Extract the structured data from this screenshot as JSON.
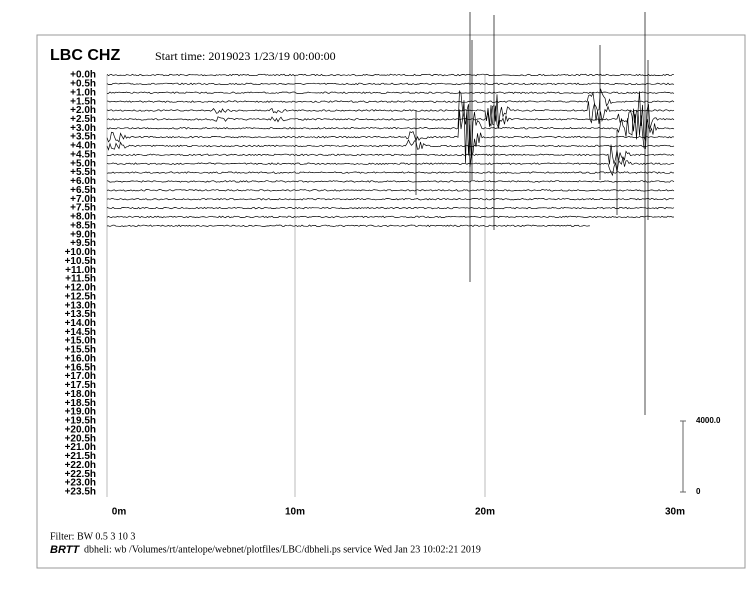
{
  "header": {
    "title": "LBC CHZ",
    "start_time": "Start time: 2019023  1/23/19 00:00:00"
  },
  "rows": [
    "+0.0h",
    "+0.5h",
    "+1.0h",
    "+1.5h",
    "+2.0h",
    "+2.5h",
    "+3.0h",
    "+3.5h",
    "+4.0h",
    "+4.5h",
    "+5.0h",
    "+5.5h",
    "+6.0h",
    "+6.5h",
    "+7.0h",
    "+7.5h",
    "+8.0h",
    "+8.5h",
    "+9.0h",
    "+9.5h",
    "+10.0h",
    "+10.5h",
    "+11.0h",
    "+11.5h",
    "+12.0h",
    "+12.5h",
    "+13.0h",
    "+13.5h",
    "+14.0h",
    "+14.5h",
    "+15.0h",
    "+15.5h",
    "+16.0h",
    "+16.5h",
    "+17.0h",
    "+17.5h",
    "+18.0h",
    "+18.5h",
    "+19.0h",
    "+19.5h",
    "+20.0h",
    "+20.5h",
    "+21.0h",
    "+21.5h",
    "+22.0h",
    "+22.5h",
    "+23.0h",
    "+23.5h"
  ],
  "x_axis": [
    "0m",
    "10m",
    "20m",
    "30m"
  ],
  "scale": {
    "top": "4000.0",
    "bottom": "0"
  },
  "footer": {
    "filter": "Filter: BW 0.5 3 10 3",
    "brand": "BRTT",
    "info": "dbheli: wb /Volumes/rt/antelope/webnet/plotfiles/LBC/dbheli.ps service Wed Jan 23 10:02:21 2019"
  }
}
